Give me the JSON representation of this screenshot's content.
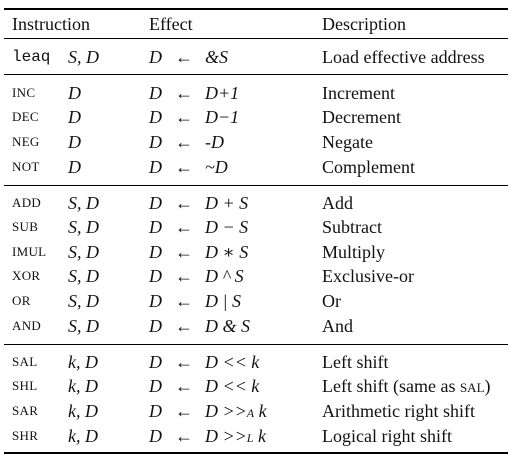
{
  "headers": {
    "instruction": "Instruction",
    "effect": "Effect",
    "description": "Description"
  },
  "rows": [
    {
      "mnemonic": "leaq",
      "operands": "S, D",
      "dest": "D",
      "arrow": "←",
      "source": "&S",
      "description": "Load effective address"
    },
    {
      "mnemonic": "INC",
      "operands": "D",
      "dest": "D",
      "arrow": "←",
      "source": "D+1",
      "description": "Increment"
    },
    {
      "mnemonic": "DEC",
      "operands": "D",
      "dest": "D",
      "arrow": "←",
      "source": "D−1",
      "description": "Decrement"
    },
    {
      "mnemonic": "NEG",
      "operands": "D",
      "dest": "D",
      "arrow": "←",
      "source": "-D",
      "description": "Negate"
    },
    {
      "mnemonic": "NOT",
      "operands": "D",
      "dest": "D",
      "arrow": "←",
      "source": "~D",
      "description": "Complement"
    },
    {
      "mnemonic": "ADD",
      "operands": "S, D",
      "dest": "D",
      "arrow": "←",
      "source": "D + S",
      "description": "Add"
    },
    {
      "mnemonic": "SUB",
      "operands": "S, D",
      "dest": "D",
      "arrow": "←",
      "source": "D − S",
      "description": "Subtract"
    },
    {
      "mnemonic": "IMUL",
      "operands": "S, D",
      "dest": "D",
      "arrow": "←",
      "source": "D ∗ S",
      "description": "Multiply"
    },
    {
      "mnemonic": "XOR",
      "operands": "S, D",
      "dest": "D",
      "arrow": "←",
      "source": "D ^ S",
      "description": "Exclusive-or"
    },
    {
      "mnemonic": "OR",
      "operands": "S, D",
      "dest": "D",
      "arrow": "←",
      "source": "D | S",
      "description": "Or"
    },
    {
      "mnemonic": "AND",
      "operands": "S, D",
      "dest": "D",
      "arrow": "←",
      "source": "D & S",
      "description": "And"
    },
    {
      "mnemonic": "SAL",
      "operands": "k, D",
      "dest": "D",
      "arrow": "←",
      "source": "D << k",
      "description": "Left shift"
    },
    {
      "mnemonic": "SHL",
      "operands": "k, D",
      "dest": "D",
      "arrow": "←",
      "source": "D << k",
      "description": "Left shift (same as ",
      "description_sc": "SAL",
      "description_end": ")"
    },
    {
      "mnemonic": "SAR",
      "operands": "k, D",
      "dest": "D",
      "arrow": "←",
      "source": "D >>",
      "source_sub": "A",
      "source_end": " k",
      "description": "Arithmetic right shift"
    },
    {
      "mnemonic": "SHR",
      "operands": "k, D",
      "dest": "D",
      "arrow": "←",
      "source": "D >>",
      "source_sub": "L",
      "source_end": " k",
      "description": "Logical right shift"
    }
  ]
}
